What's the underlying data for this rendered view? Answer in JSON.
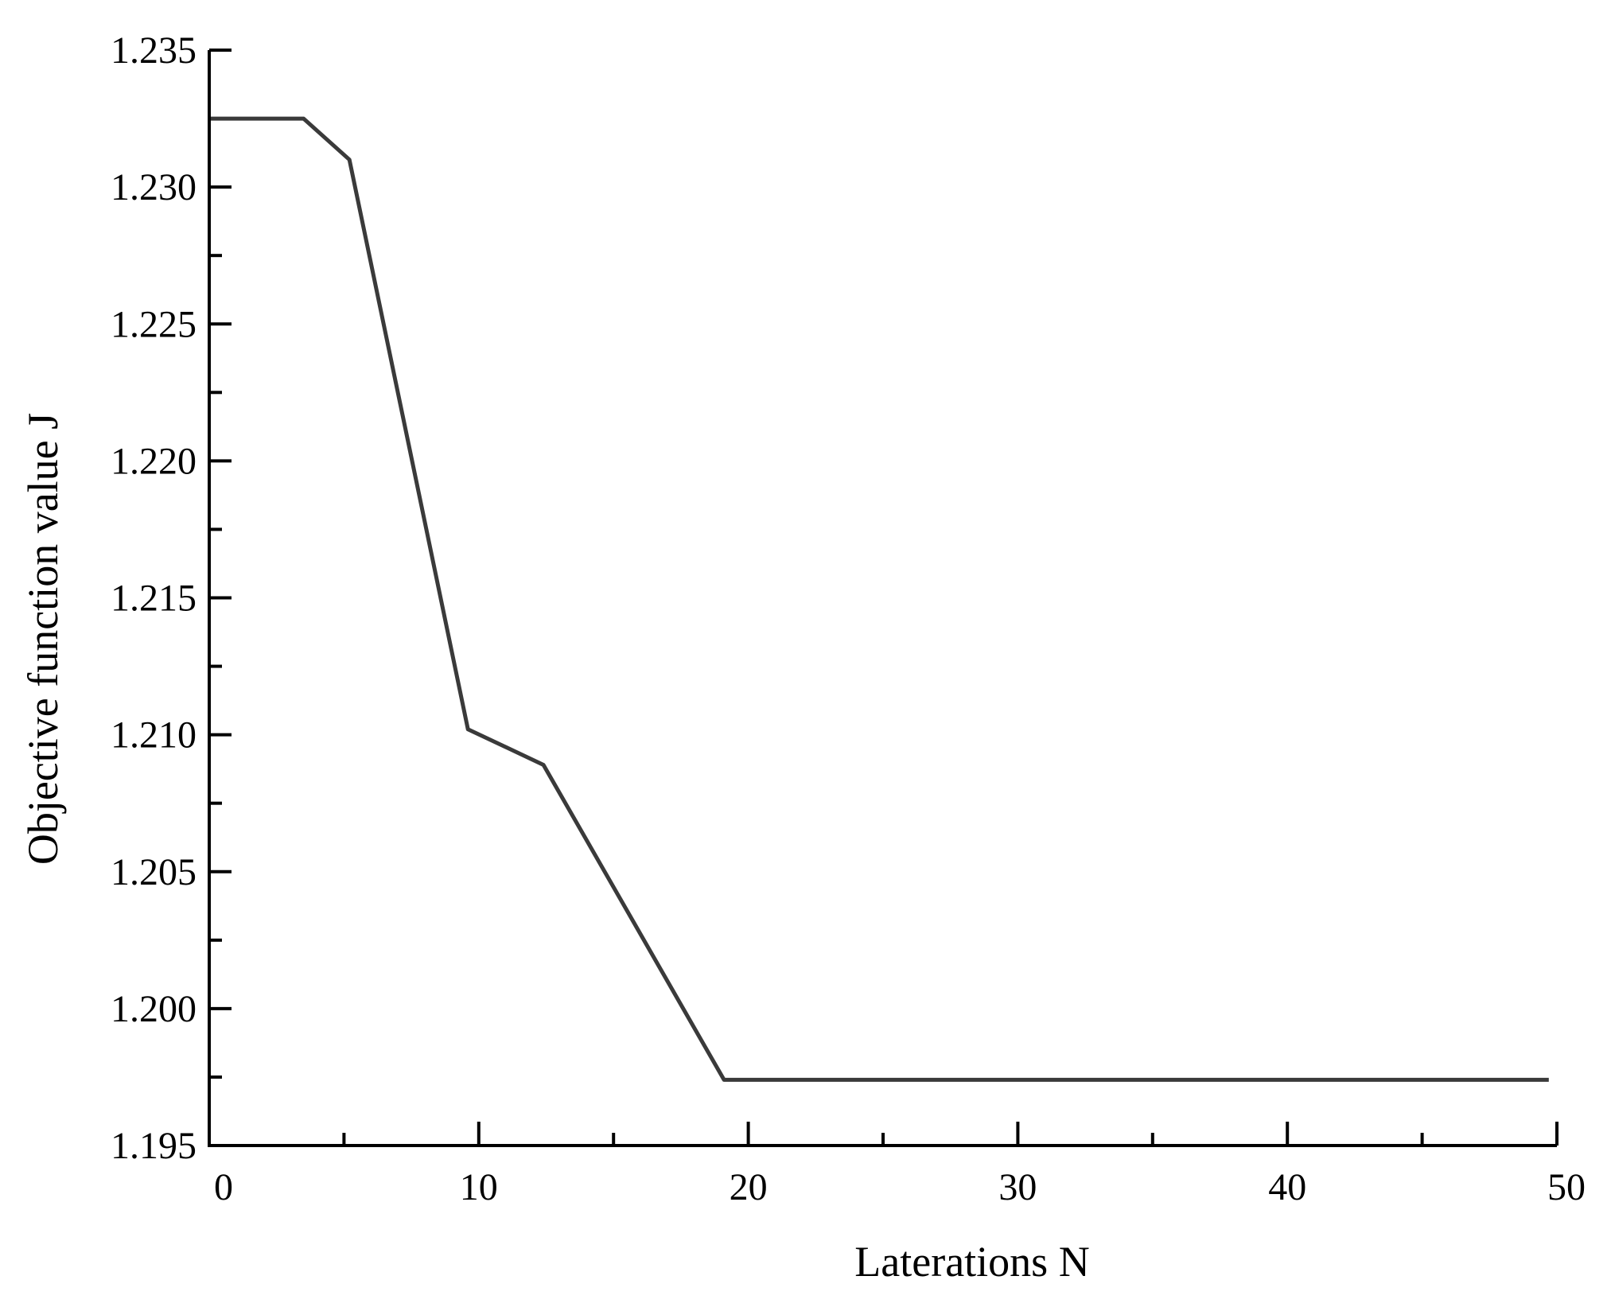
{
  "chart_data": {
    "type": "line",
    "title": "",
    "xlabel": "Laterations N",
    "ylabel": "Objective function value J",
    "xlim": [
      0,
      50
    ],
    "ylim": [
      1.195,
      1.235
    ],
    "xticks": [
      0,
      10,
      20,
      30,
      40,
      50
    ],
    "xtick_labels": [
      "0",
      "10",
      "20",
      "30",
      "40",
      "50"
    ],
    "xminor_ticks": [
      5,
      15,
      25,
      35,
      45
    ],
    "yticks": [
      1.195,
      1.2,
      1.205,
      1.21,
      1.215,
      1.22,
      1.225,
      1.23,
      1.235
    ],
    "ytick_labels": [
      "1.195",
      "1.200",
      "1.205",
      "1.210",
      "1.215",
      "1.220",
      "1.225",
      "1.230",
      "1.235"
    ],
    "yminor_ticks": [
      1.1975,
      1.2025,
      1.2075,
      1.2125,
      1.2175,
      1.2225,
      1.2275,
      1.2325
    ],
    "grid": false,
    "legend": "none",
    "series": [
      {
        "color": "#3a3a3a",
        "x": [
          0,
          3.5,
          5.2,
          9.6,
          12.4,
          19.1,
          49.7
        ],
        "y": [
          1.2325,
          1.2325,
          1.231,
          1.2102,
          1.2089,
          1.1974,
          1.1974
        ]
      }
    ]
  }
}
